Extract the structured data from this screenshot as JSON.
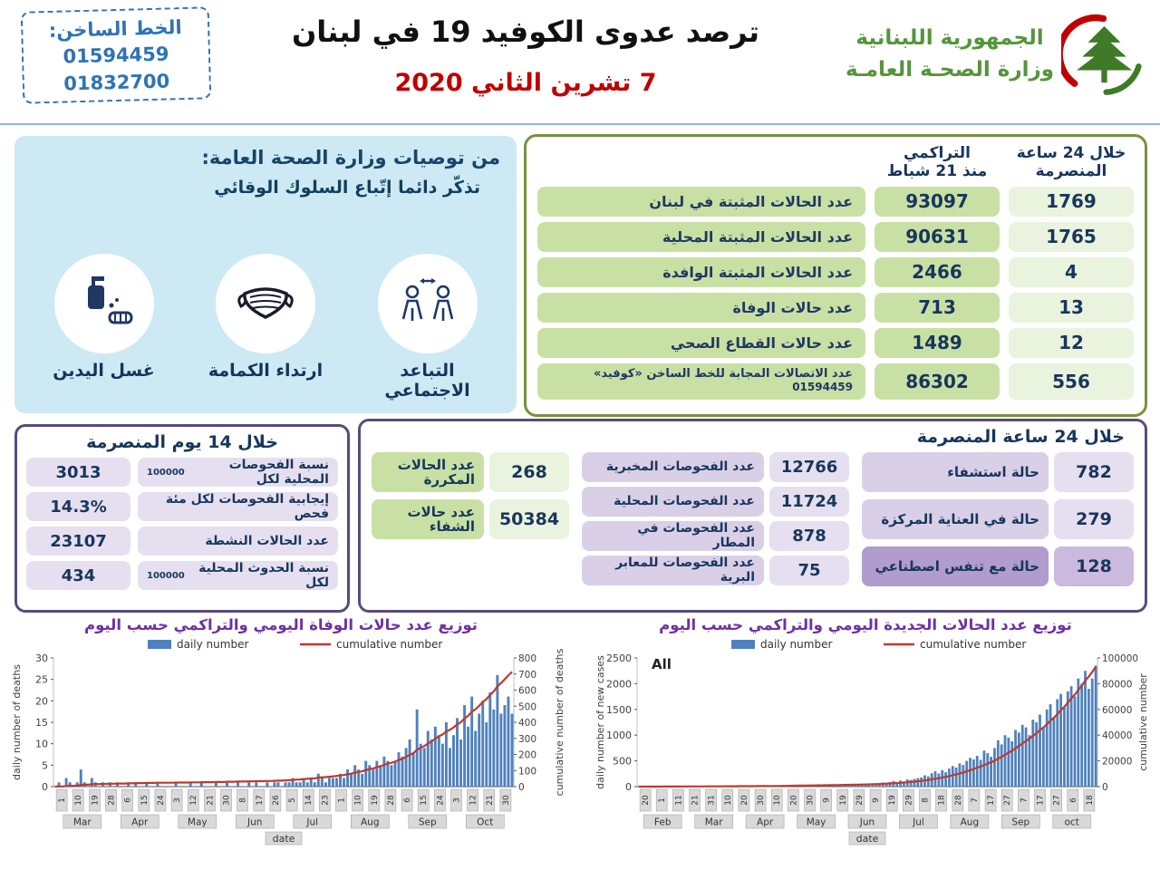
{
  "header": {
    "hotline_title": "الخط الساخن:",
    "hotline_numbers": [
      "01594459",
      "01832700"
    ],
    "title": "ترصد عدوى الكوفيد 19 في لبنان",
    "date": "7 تشرين الثاني 2020",
    "ministry_line1": "الجمهورية اللبنانية",
    "ministry_line2": "وزارة الصحـة العامـة"
  },
  "recommendations": {
    "title": "من توصيات وزارة الصحة العامة:",
    "subtitle": "تذكّر دائما إتّباع السلوك الوقائي",
    "items": [
      {
        "label": "غسل اليدين",
        "icon": "handwash-icon"
      },
      {
        "label": "ارتداء الكمامة",
        "icon": "mask-icon"
      },
      {
        "label": "التباعد الاجتماعي",
        "icon": "distancing-icon"
      }
    ]
  },
  "stats_table": {
    "col_24h_line1": "خلال 24 ساعة",
    "col_24h_line2": "المنصرمة",
    "col_cum_line1": "التراكمي",
    "col_cum_line2": "منذ 21 شباط",
    "rows": [
      {
        "label": "عدد الحالات المثبتة في لبنان",
        "cumulative": "93097",
        "last24h": "1769"
      },
      {
        "label": "عدد الحالات المثبتة المحلية",
        "cumulative": "90631",
        "last24h": "1765"
      },
      {
        "label": "عدد الحالات المثبتة الوافدة",
        "cumulative": "2466",
        "last24h": "4"
      },
      {
        "label": "عدد حالات الوفاة",
        "cumulative": "713",
        "last24h": "13"
      },
      {
        "label": "عدد حالات القطاع الصحي",
        "cumulative": "1489",
        "last24h": "12"
      },
      {
        "label": "عدد الاتصالات المجابة  للخط الساخن «كوفيد»",
        "label_sub": "01594459",
        "cumulative": "86302",
        "last24h": "556"
      }
    ]
  },
  "period14": {
    "title": "خلال 14 يوم المنصرمة",
    "rows": [
      {
        "value": "3013",
        "label": "نسبة الفحوصات  المحلية لكل",
        "suffix": "100000"
      },
      {
        "value": "14.3%",
        "label": "إيجابية الفحوصات لكل مئة فحص",
        "suffix": ""
      },
      {
        "value": "23107",
        "label": "عدد الحالات النشطة",
        "suffix": ""
      },
      {
        "value": "434",
        "label": "نسبة الحدوث المحلية لكل",
        "suffix": "100000"
      }
    ]
  },
  "period24": {
    "title": "خلال 24 ساعة المنصرمة",
    "hospital": [
      {
        "label": "حالة استشفاء",
        "value": "782"
      },
      {
        "label": "حالة في العناية المركزة",
        "value": "279"
      },
      {
        "label": "حالة مع تنفس اصطناعي",
        "value": "128"
      }
    ],
    "tests": [
      {
        "label": "عدد الفحوصات المخبرية",
        "value": "12766"
      },
      {
        "label": "عدد الفحوصات المحلية",
        "value": "11724"
      },
      {
        "label": "عدد الفحوصات في المطار",
        "value": "878"
      },
      {
        "label": "عدد الفحوصات للمعابر البرية",
        "value": "75"
      }
    ],
    "recovery": [
      {
        "label": "عدد الحالات المكررة",
        "value": "268"
      },
      {
        "label": "عدد حالات الشفاء",
        "value": "50384"
      }
    ]
  },
  "chart_data": [
    {
      "type": "bar",
      "title": "توزيع عدد حالات  الوفاة اليومي والتراكمي حسب اليوم",
      "legend": [
        "daily number",
        "cumulative number"
      ],
      "ylabel_left": "daily number of deaths",
      "ylabel_right": "cumulative number of deaths",
      "yticks_left": [
        0,
        5,
        10,
        15,
        20,
        25,
        30
      ],
      "ymax_left": 30,
      "yticks_right": [
        0,
        100,
        200,
        300,
        400,
        500,
        600,
        700,
        800
      ],
      "ymax_right": 800,
      "cumulative_total": 713,
      "xlabel": "date",
      "xticks": [
        "1",
        "10",
        "19",
        "28",
        "6",
        "15",
        "24",
        "3",
        "12",
        "21",
        "30",
        "8",
        "17",
        "26",
        "5",
        "14",
        "23",
        "1",
        "10",
        "19",
        "28",
        "6",
        "15",
        "24",
        "3",
        "12",
        "21",
        "30"
      ],
      "months": [
        "Mar",
        "Apr",
        "May",
        "Jun",
        "Jul",
        "Aug",
        "Sep",
        "Oct"
      ],
      "corner_label": "",
      "colors": {
        "bar": "#4f81bd",
        "line": "#c0392b"
      },
      "daily": [
        0,
        1,
        0,
        2,
        1,
        0,
        1,
        4,
        1,
        0,
        2,
        1,
        0,
        1,
        0,
        1,
        0,
        1,
        0,
        0,
        1,
        0,
        1,
        0,
        0,
        1,
        0,
        0,
        1,
        0,
        0,
        0,
        0,
        1,
        0,
        0,
        0,
        1,
        0,
        0,
        1,
        0,
        0,
        0,
        1,
        0,
        0,
        1,
        0,
        0,
        1,
        0,
        0,
        1,
        0,
        1,
        0,
        0,
        1,
        0,
        1,
        1,
        0,
        1,
        1,
        2,
        1,
        1,
        2,
        1,
        2,
        1,
        3,
        2,
        1,
        2,
        2,
        2,
        3,
        2,
        4,
        3,
        5,
        4,
        3,
        6,
        5,
        4,
        6,
        5,
        7,
        6,
        5,
        6,
        8,
        7,
        9,
        11,
        8,
        18,
        10,
        9,
        13,
        11,
        14,
        12,
        10,
        15,
        9,
        12,
        16,
        11,
        19,
        14,
        21,
        13,
        17,
        20,
        15,
        22,
        18,
        26,
        17,
        19,
        21,
        17
      ]
    },
    {
      "type": "bar",
      "title": "توزيع عدد الحالات الجديدة اليومي والتراكمي حسب اليوم",
      "legend": [
        "daily number",
        "cumulative number"
      ],
      "ylabel_left": "daily number of new cases",
      "ylabel_right": "cumulative number",
      "yticks_left": [
        0,
        500,
        1000,
        1500,
        2000,
        2500
      ],
      "ymax_left": 2500,
      "yticks_right": [
        0,
        20000,
        40000,
        60000,
        80000,
        100000
      ],
      "ymax_right": 100000,
      "cumulative_total": 93097,
      "xlabel": "date",
      "xticks": [
        "20",
        "1",
        "11",
        "21",
        "31",
        "10",
        "20",
        "30",
        "10",
        "20",
        "30",
        "9",
        "19",
        "29",
        "9",
        "19",
        "29",
        "8",
        "18",
        "28",
        "7",
        "17",
        "27",
        "7",
        "17",
        "27",
        "6",
        "18"
      ],
      "months": [
        "Feb",
        "Mar",
        "Apr",
        "May",
        "Jun",
        "Jul",
        "Aug",
        "Sep",
        "oct"
      ],
      "corner_label": "All",
      "colors": {
        "bar": "#4f81bd",
        "line": "#c0392b"
      },
      "daily": [
        2,
        1,
        3,
        2,
        4,
        3,
        5,
        6,
        4,
        8,
        10,
        7,
        6,
        9,
        8,
        5,
        7,
        6,
        4,
        8,
        6,
        5,
        8,
        10,
        6,
        12,
        9,
        7,
        11,
        8,
        10,
        6,
        9,
        12,
        8,
        7,
        10,
        14,
        8,
        20,
        12,
        25,
        18,
        30,
        22,
        16,
        28,
        20,
        35,
        25,
        30,
        20,
        15,
        25,
        18,
        30,
        22,
        35,
        28,
        40,
        32,
        25,
        45,
        38,
        30,
        50,
        40,
        55,
        45,
        65,
        80,
        60,
        90,
        110,
        85,
        120,
        100,
        140,
        130,
        150,
        165,
        180,
        220,
        200,
        260,
        300,
        255,
        320,
        280,
        350,
        400,
        370,
        450,
        420,
        500,
        560,
        530,
        600,
        520,
        700,
        650,
        580,
        750,
        900,
        820,
        1000,
        950,
        880,
        1100,
        1050,
        1200,
        1150,
        1000,
        1300,
        1250,
        1400,
        1150,
        1500,
        1600,
        1350,
        1700,
        1800,
        1550,
        1850,
        1950,
        1750,
        2100,
        2000,
        2250,
        1900,
        2100,
        2350
      ]
    }
  ]
}
